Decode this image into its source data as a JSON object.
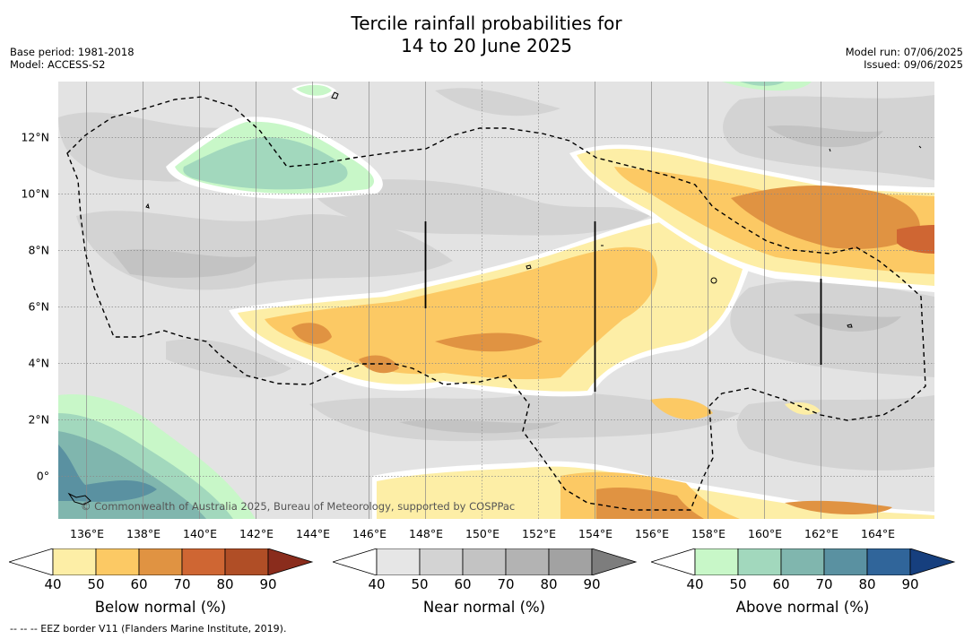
{
  "title": {
    "line1": "Tercile rainfall probabilities for",
    "line2": "14 to 20 June 2025"
  },
  "meta": {
    "base_period": "Base period: 1981-2018",
    "model": "Model: ACCESS-S2",
    "model_run": "Model run: 07/06/2025",
    "issued": "Issued: 09/06/2025"
  },
  "map": {
    "copyright": "© Commonwealth of Australia 2025, Bureau of Meteorology, supported by COSPPac",
    "longitude_ticks": [
      "136°E",
      "138°E",
      "140°E",
      "142°E",
      "144°E",
      "146°E",
      "148°E",
      "150°E",
      "152°E",
      "154°E",
      "156°E",
      "158°E",
      "160°E",
      "162°E",
      "164°E"
    ],
    "latitude_ticks": [
      "12°N",
      "10°N",
      "8°N",
      "6°N",
      "4°N",
      "2°N",
      "0°"
    ],
    "extent": {
      "lon": [
        134.9,
        165.9
      ],
      "lat": [
        -1.5,
        14.0
      ]
    },
    "colors": {
      "background_near_normal": "#e3e3e3",
      "grid": "#888888",
      "eez_border": "#000000"
    }
  },
  "colorbars": {
    "ticks": [
      "40",
      "50",
      "60",
      "70",
      "80",
      "90"
    ],
    "below": {
      "label": "Below normal (%)",
      "colors": [
        "#ffffff",
        "#fdeea6",
        "#fcc964",
        "#e09342",
        "#cf6633",
        "#b04e26",
        "#8a2c1c"
      ]
    },
    "near": {
      "label": "Near normal (%)",
      "colors": [
        "#ffffff",
        "#e6e6e6",
        "#d3d3d3",
        "#c3c3c3",
        "#b3b3b3",
        "#a2a2a2",
        "#7d7d7d"
      ]
    },
    "above": {
      "label": "Above normal (%)",
      "colors": [
        "#ffffff",
        "#c8f7c8",
        "#a2d8bd",
        "#80b6ae",
        "#5a91a1",
        "#30659a",
        "#163f7e"
      ]
    }
  },
  "footnote": "--  --  -- EEZ border V11 (Flanders Marine Institute, 2019)."
}
